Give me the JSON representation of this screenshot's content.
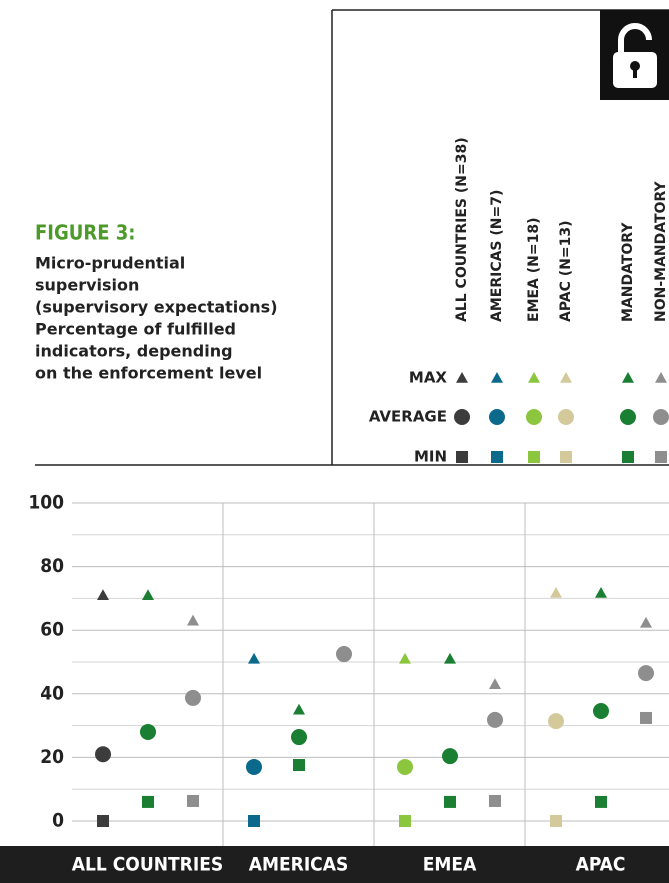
{
  "chart_data": {
    "type": "dot",
    "title": "FIGURE 3:",
    "subtitle": [
      "Micro-prudential",
      "supervision",
      "(supervisory expectations)",
      "Percentage of fulfilled",
      "indicators, depending",
      "on the enforcement level"
    ],
    "legend": {
      "columns": [
        {
          "name": "ALL COUNTRIES (N=38)",
          "color": "#3c3c3c"
        },
        {
          "name": "AMERICAS (N=7)",
          "color": "#0b6a8c"
        },
        {
          "name": "EMEA (N=18)",
          "color": "#8cc63f"
        },
        {
          "name": "APAC (N=13)",
          "color": "#d4c99b"
        },
        {
          "name": "MANDATORY",
          "color": "#1a7f32"
        },
        {
          "name": "NON-MANDATORY",
          "color": "#8e8e8e"
        }
      ],
      "rows": [
        "MAX",
        "AVERAGE",
        "MIN"
      ]
    },
    "ylim": [
      0,
      100
    ],
    "yticks": [
      0,
      20,
      40,
      60,
      80,
      100
    ],
    "minor_yticks": [
      10,
      30,
      50,
      70,
      90
    ],
    "groups": [
      {
        "name": "ALL COUNTRIES",
        "points": [
          {
            "color": "#3c3c3c",
            "max": 71,
            "average": 21,
            "min": 0
          },
          {
            "color": "#1a7f32",
            "max": 71,
            "average": 28,
            "min": 6
          },
          {
            "color": "#8e8e8e",
            "max": 63,
            "average": 38.7,
            "min": 6.3
          }
        ]
      },
      {
        "name": "AMERICAS",
        "points": [
          {
            "color": "#0b6a8c",
            "max": 51,
            "average": 17,
            "min": 0
          },
          {
            "color": "#1a7f32",
            "max": 35,
            "average": 26.4,
            "min": 17.6
          },
          {
            "color": "#8e8e8e",
            "max": null,
            "average": 52.5,
            "min": null
          }
        ]
      },
      {
        "name": "EMEA",
        "points": [
          {
            "color": "#8cc63f",
            "max": 51,
            "average": 17,
            "min": 0
          },
          {
            "color": "#1a7f32",
            "max": 51,
            "average": 20.4,
            "min": 6
          },
          {
            "color": "#8e8e8e",
            "max": 43,
            "average": 31.8,
            "min": 6.3
          }
        ]
      },
      {
        "name": "APAC",
        "points": [
          {
            "color": "#d4c99b",
            "max": 71.7,
            "average": 31.4,
            "min": 0
          },
          {
            "color": "#1a7f32",
            "max": 71.7,
            "average": 34.6,
            "min": 6
          },
          {
            "color": "#8e8e8e",
            "max": 62.3,
            "average": 46.5,
            "min": 32.4
          }
        ]
      }
    ]
  }
}
